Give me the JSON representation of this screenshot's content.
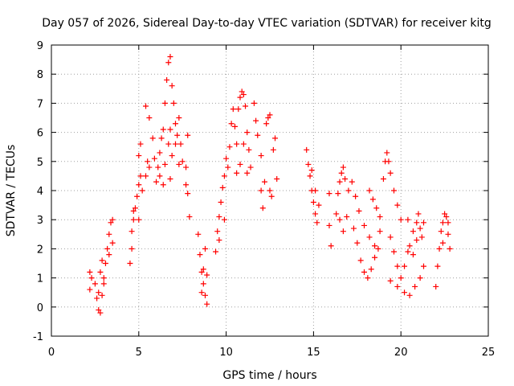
{
  "chart_data": {
    "type": "scatter",
    "title": "Day 057 of 2026, Sidereal Day-to-day VTEC variation (SDTVAR) for receiver kitg",
    "xlabel": "GPS time / hours",
    "ylabel": "SDTVAR / TECUs",
    "xlim": [
      0,
      25
    ],
    "ylim": [
      -1,
      9
    ],
    "xticks": [
      0,
      5,
      10,
      15,
      20,
      25
    ],
    "yticks": [
      -1,
      0,
      1,
      2,
      3,
      4,
      5,
      6,
      7,
      8,
      9
    ],
    "grid": true,
    "marker": "+",
    "color": "#ff0000",
    "series": [
      {
        "name": "SDTVAR",
        "points": [
          [
            2.2,
            0.6
          ],
          [
            2.2,
            1.2
          ],
          [
            2.3,
            1.0
          ],
          [
            2.5,
            0.8
          ],
          [
            2.6,
            0.3
          ],
          [
            2.7,
            -0.1
          ],
          [
            2.8,
            -0.2
          ],
          [
            2.7,
            0.5
          ],
          [
            2.8,
            1.2
          ],
          [
            2.9,
            1.6
          ],
          [
            3.0,
            1.0
          ],
          [
            3.1,
            1.5
          ],
          [
            3.2,
            2.0
          ],
          [
            3.3,
            2.5
          ],
          [
            3.4,
            2.9
          ],
          [
            3.5,
            3.0
          ],
          [
            3.3,
            1.8
          ],
          [
            3.5,
            2.2
          ],
          [
            2.9,
            0.4
          ],
          [
            3.0,
            0.8
          ],
          [
            4.5,
            1.5
          ],
          [
            4.6,
            2.0
          ],
          [
            4.6,
            2.6
          ],
          [
            4.7,
            3.0
          ],
          [
            4.8,
            3.4
          ],
          [
            4.9,
            3.8
          ],
          [
            5.0,
            4.2
          ],
          [
            5.1,
            4.5
          ],
          [
            4.7,
            3.3
          ],
          [
            5.0,
            5.2
          ],
          [
            5.1,
            5.6
          ],
          [
            5.0,
            3.0
          ],
          [
            5.2,
            4.0
          ],
          [
            5.4,
            4.5
          ],
          [
            5.5,
            5.0
          ],
          [
            5.6,
            4.8
          ],
          [
            5.4,
            6.9
          ],
          [
            5.6,
            6.5
          ],
          [
            5.8,
            5.8
          ],
          [
            5.9,
            5.1
          ],
          [
            6.0,
            4.3
          ],
          [
            6.1,
            4.8
          ],
          [
            6.2,
            5.3
          ],
          [
            6.3,
            5.8
          ],
          [
            6.4,
            6.1
          ],
          [
            6.2,
            4.5
          ],
          [
            6.5,
            4.9
          ],
          [
            6.7,
            5.6
          ],
          [
            6.8,
            6.1
          ],
          [
            6.5,
            7.0
          ],
          [
            6.6,
            7.8
          ],
          [
            6.7,
            8.4
          ],
          [
            6.8,
            8.6
          ],
          [
            6.9,
            7.6
          ],
          [
            7.0,
            7.0
          ],
          [
            7.1,
            6.3
          ],
          [
            6.9,
            5.2
          ],
          [
            7.1,
            5.6
          ],
          [
            7.2,
            5.9
          ],
          [
            7.3,
            4.9
          ],
          [
            7.3,
            6.5
          ],
          [
            7.4,
            5.6
          ],
          [
            7.5,
            5.0
          ],
          [
            7.7,
            4.8
          ],
          [
            7.8,
            5.9
          ],
          [
            7.8,
            3.9
          ],
          [
            7.9,
            3.1
          ],
          [
            7.7,
            4.2
          ],
          [
            6.4,
            4.2
          ],
          [
            6.8,
            4.4
          ],
          [
            8.4,
            2.5
          ],
          [
            8.5,
            1.8
          ],
          [
            8.6,
            1.2
          ],
          [
            8.7,
            0.8
          ],
          [
            8.8,
            0.4
          ],
          [
            8.9,
            0.1
          ],
          [
            8.6,
            0.5
          ],
          [
            8.7,
            1.3
          ],
          [
            8.8,
            2.0
          ],
          [
            8.9,
            1.1
          ],
          [
            9.4,
            1.9
          ],
          [
            9.5,
            2.6
          ],
          [
            9.6,
            3.1
          ],
          [
            9.7,
            3.6
          ],
          [
            9.8,
            4.1
          ],
          [
            9.9,
            4.5
          ],
          [
            10.0,
            5.1
          ],
          [
            9.6,
            2.3
          ],
          [
            9.9,
            3.0
          ],
          [
            10.1,
            4.8
          ],
          [
            10.2,
            5.5
          ],
          [
            10.3,
            6.3
          ],
          [
            10.4,
            6.8
          ],
          [
            10.5,
            6.2
          ],
          [
            10.6,
            5.6
          ],
          [
            10.7,
            6.8
          ],
          [
            10.8,
            7.2
          ],
          [
            10.9,
            7.4
          ],
          [
            11.0,
            7.3
          ],
          [
            11.1,
            6.9
          ],
          [
            10.6,
            4.6
          ],
          [
            10.8,
            4.9
          ],
          [
            11.0,
            5.6
          ],
          [
            11.2,
            6.0
          ],
          [
            11.3,
            5.4
          ],
          [
            11.2,
            4.6
          ],
          [
            11.4,
            4.8
          ],
          [
            11.6,
            7.0
          ],
          [
            11.7,
            6.4
          ],
          [
            11.8,
            5.9
          ],
          [
            12.0,
            5.2
          ],
          [
            12.0,
            4.0
          ],
          [
            12.1,
            3.4
          ],
          [
            12.2,
            4.3
          ],
          [
            12.3,
            6.3
          ],
          [
            12.4,
            6.5
          ],
          [
            12.5,
            6.6
          ],
          [
            12.5,
            4.0
          ],
          [
            12.6,
            3.8
          ],
          [
            12.7,
            5.4
          ],
          [
            12.8,
            5.8
          ],
          [
            12.9,
            4.4
          ],
          [
            14.6,
            5.4
          ],
          [
            14.7,
            4.9
          ],
          [
            14.8,
            4.5
          ],
          [
            14.9,
            4.0
          ],
          [
            15.0,
            3.6
          ],
          [
            15.1,
            3.2
          ],
          [
            15.2,
            2.9
          ],
          [
            14.9,
            4.7
          ],
          [
            15.1,
            4.0
          ],
          [
            15.3,
            3.5
          ],
          [
            15.9,
            2.8
          ],
          [
            16.0,
            2.1
          ],
          [
            15.9,
            3.9
          ],
          [
            16.3,
            3.2
          ],
          [
            16.4,
            3.9
          ],
          [
            16.5,
            4.3
          ],
          [
            16.6,
            4.6
          ],
          [
            16.7,
            4.8
          ],
          [
            16.8,
            4.4
          ],
          [
            16.5,
            3.0
          ],
          [
            16.7,
            2.6
          ],
          [
            16.9,
            3.1
          ],
          [
            17.0,
            4.0
          ],
          [
            17.2,
            4.3
          ],
          [
            17.4,
            3.8
          ],
          [
            17.3,
            2.7
          ],
          [
            17.5,
            2.2
          ],
          [
            17.7,
            1.6
          ],
          [
            17.9,
            1.2
          ],
          [
            18.1,
            1.0
          ],
          [
            18.3,
            1.3
          ],
          [
            18.5,
            1.7
          ],
          [
            18.7,
            2.0
          ],
          [
            17.6,
            3.3
          ],
          [
            17.9,
            2.8
          ],
          [
            18.2,
            2.4
          ],
          [
            18.5,
            2.1
          ],
          [
            18.8,
            2.6
          ],
          [
            18.2,
            4.0
          ],
          [
            18.4,
            3.7
          ],
          [
            18.6,
            3.4
          ],
          [
            18.8,
            3.1
          ],
          [
            19.0,
            4.4
          ],
          [
            19.1,
            5.0
          ],
          [
            19.2,
            5.3
          ],
          [
            19.3,
            5.0
          ],
          [
            19.4,
            4.6
          ],
          [
            19.6,
            4.0
          ],
          [
            19.8,
            3.5
          ],
          [
            20.0,
            3.0
          ],
          [
            19.4,
            2.4
          ],
          [
            19.6,
            1.9
          ],
          [
            19.8,
            1.4
          ],
          [
            20.0,
            1.0
          ],
          [
            20.2,
            1.4
          ],
          [
            20.4,
            1.9
          ],
          [
            19.4,
            0.9
          ],
          [
            19.8,
            0.7
          ],
          [
            20.2,
            0.5
          ],
          [
            20.5,
            0.4
          ],
          [
            20.8,
            0.7
          ],
          [
            21.1,
            1.0
          ],
          [
            21.3,
            1.4
          ],
          [
            20.4,
            3.0
          ],
          [
            20.7,
            2.6
          ],
          [
            20.9,
            2.3
          ],
          [
            21.1,
            2.7
          ],
          [
            21.3,
            2.9
          ],
          [
            20.5,
            2.1
          ],
          [
            20.7,
            1.8
          ],
          [
            20.9,
            2.9
          ],
          [
            21.2,
            2.4
          ],
          [
            21.0,
            3.2
          ],
          [
            22.0,
            0.7
          ],
          [
            22.1,
            1.4
          ],
          [
            22.2,
            2.0
          ],
          [
            22.3,
            2.6
          ],
          [
            22.4,
            2.9
          ],
          [
            22.5,
            3.2
          ],
          [
            22.6,
            3.1
          ],
          [
            22.7,
            2.5
          ],
          [
            22.8,
            2.0
          ],
          [
            22.4,
            2.2
          ],
          [
            22.7,
            2.9
          ]
        ]
      }
    ]
  }
}
